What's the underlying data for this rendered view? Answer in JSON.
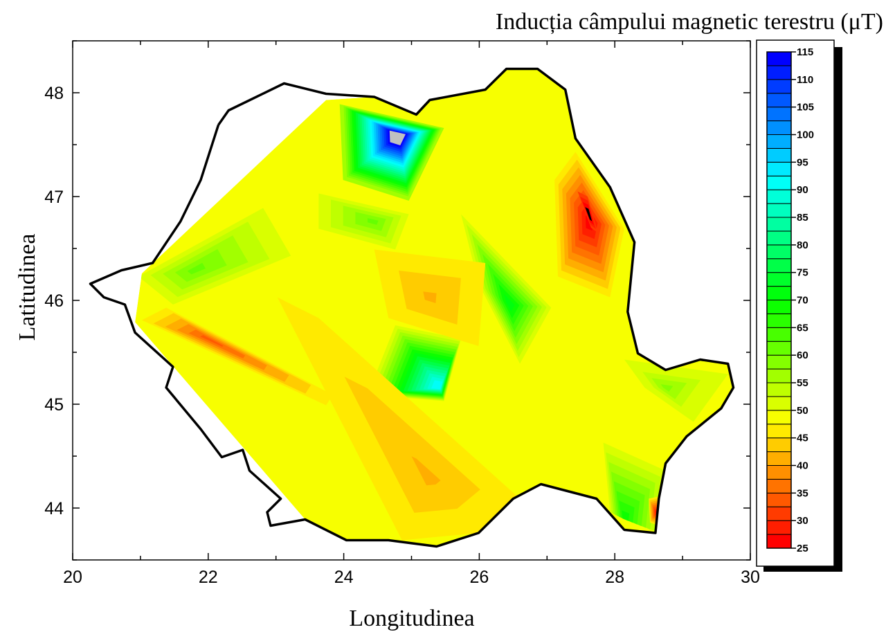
{
  "chart_data": {
    "type": "contour",
    "title": "Inducția câmpului magnetic terestru (μT)",
    "xlabel": "Longitudinea",
    "ylabel": "Latitudinea",
    "xlim": [
      20,
      30
    ],
    "ylim": [
      43.5,
      48.5
    ],
    "x_ticks": [
      "20",
      "22",
      "24",
      "26",
      "28",
      "30"
    ],
    "y_ticks": [
      "44",
      "45",
      "46",
      "47",
      "48"
    ],
    "grid": false,
    "colorbar": {
      "min": 25,
      "max": 115,
      "step": 2.5,
      "tick_labels": [
        "25",
        "30",
        "35",
        "40",
        "45",
        "50",
        "55",
        "60",
        "65",
        "70",
        "75",
        "80",
        "85",
        "90",
        "95",
        "100",
        "105",
        "110",
        "115"
      ],
      "placement": "right",
      "low_color": "#ff0000",
      "high_color": "#0000ff",
      "below_range_color": "#000000",
      "above_range_color": "#c0c0c0"
    },
    "base_value": 48,
    "border": [
      [
        22.15,
        47.69
      ],
      [
        22.3,
        47.83
      ],
      [
        23.12,
        48.09
      ],
      [
        23.74,
        47.99
      ],
      [
        24.45,
        47.96
      ],
      [
        25.07,
        47.79
      ],
      [
        25.27,
        47.93
      ],
      [
        26.09,
        48.03
      ],
      [
        26.4,
        48.23
      ],
      [
        26.86,
        48.23
      ],
      [
        27.27,
        48.03
      ],
      [
        27.42,
        47.56
      ],
      [
        27.93,
        47.09
      ],
      [
        28.29,
        46.56
      ],
      [
        28.19,
        45.89
      ],
      [
        28.34,
        45.49
      ],
      [
        28.75,
        45.33
      ],
      [
        29.26,
        45.43
      ],
      [
        29.67,
        45.39
      ],
      [
        29.75,
        45.16
      ],
      [
        29.57,
        44.96
      ],
      [
        29.06,
        44.69
      ],
      [
        28.75,
        44.43
      ],
      [
        28.65,
        44.09
      ],
      [
        28.6,
        43.76
      ],
      [
        28.14,
        43.79
      ],
      [
        27.73,
        44.09
      ],
      [
        26.91,
        44.23
      ],
      [
        26.5,
        44.09
      ],
      [
        25.99,
        43.76
      ],
      [
        25.37,
        43.63
      ],
      [
        24.66,
        43.69
      ],
      [
        24.04,
        43.69
      ],
      [
        23.43,
        43.89
      ],
      [
        22.92,
        43.83
      ],
      [
        22.87,
        43.96
      ],
      [
        23.07,
        44.09
      ],
      [
        22.61,
        44.36
      ],
      [
        22.51,
        44.56
      ],
      [
        22.2,
        44.49
      ],
      [
        21.89,
        44.76
      ],
      [
        21.38,
        45.16
      ],
      [
        21.48,
        45.36
      ],
      [
        20.92,
        45.69
      ],
      [
        20.77,
        45.96
      ],
      [
        20.46,
        46.03
      ],
      [
        20.26,
        46.16
      ],
      [
        20.72,
        46.29
      ],
      [
        21.18,
        46.36
      ],
      [
        21.59,
        46.76
      ],
      [
        21.89,
        47.16
      ]
    ],
    "interpolated_area": [
      [
        20.92,
        45.79
      ],
      [
        21.02,
        46.26
      ],
      [
        23.74,
        47.93
      ],
      [
        24.45,
        47.96
      ],
      [
        25.07,
        47.79
      ],
      [
        25.27,
        47.93
      ],
      [
        26.09,
        48.03
      ],
      [
        26.4,
        48.23
      ],
      [
        26.86,
        48.23
      ],
      [
        27.27,
        48.03
      ],
      [
        27.42,
        47.56
      ],
      [
        27.93,
        47.09
      ],
      [
        28.29,
        46.56
      ],
      [
        28.19,
        45.89
      ],
      [
        28.34,
        45.49
      ],
      [
        28.75,
        45.33
      ],
      [
        29.26,
        45.43
      ],
      [
        29.67,
        45.39
      ],
      [
        29.75,
        45.16
      ],
      [
        29.57,
        44.96
      ],
      [
        29.06,
        44.69
      ],
      [
        28.75,
        44.43
      ],
      [
        28.65,
        44.09
      ],
      [
        28.6,
        43.76
      ],
      [
        28.14,
        43.79
      ],
      [
        27.73,
        44.09
      ],
      [
        26.91,
        44.23
      ],
      [
        26.5,
        44.09
      ],
      [
        25.99,
        43.76
      ],
      [
        25.37,
        43.63
      ],
      [
        24.66,
        43.69
      ],
      [
        24.04,
        43.69
      ],
      [
        23.43,
        43.89
      ]
    ],
    "features": [
      {
        "outline": [
          [
            23.94,
            47.89
          ],
          [
            25.48,
            47.66
          ],
          [
            24.96,
            46.96
          ],
          [
            23.99,
            47.16
          ]
        ],
        "center": [
          24.81,
          47.59
        ],
        "edge": 55,
        "peak": 118
      },
      {
        "outline": [
          [
            25.73,
            46.83
          ],
          [
            27.06,
            45.93
          ],
          [
            26.6,
            45.39
          ],
          [
            25.99,
            46.16
          ]
        ],
        "center": [
          26.45,
          45.96
        ],
        "edge": 52,
        "peak": 72
      },
      {
        "outline": [
          [
            24.76,
            45.76
          ],
          [
            25.73,
            45.63
          ],
          [
            25.48,
            45.03
          ],
          [
            24.35,
            45.09
          ]
        ],
        "center": [
          25.42,
          45.16
        ],
        "edge": 52,
        "peak": 90
      },
      {
        "outline": [
          [
            20.97,
            46.23
          ],
          [
            22.81,
            46.89
          ],
          [
            23.22,
            46.43
          ],
          [
            21.48,
            45.96
          ]
        ],
        "center": [
          21.79,
          46.29
        ],
        "edge": 52,
        "peak": 62
      },
      {
        "outline": [
          [
            27.11,
            47.16
          ],
          [
            27.42,
            47.43
          ],
          [
            28.14,
            46.69
          ],
          [
            27.93,
            46.03
          ],
          [
            27.16,
            46.23
          ]
        ],
        "center": [
          27.63,
          46.76
        ],
        "edge": 45,
        "peak": 27
      },
      {
        "outline": [
          [
            27.45,
            47.05
          ],
          [
            27.6,
            47.0
          ],
          [
            27.75,
            46.65
          ],
          [
            27.65,
            46.7
          ]
        ],
        "center": [
          27.62,
          46.82
        ],
        "edge": 30,
        "peak": 20
      },
      {
        "outline": [
          [
            21.02,
            45.81
          ],
          [
            21.38,
            45.93
          ],
          [
            23.84,
            45.09
          ],
          [
            23.74,
            44.99
          ]
        ],
        "center": [
          22.0,
          45.63
        ],
        "edge": 45,
        "peak": 34
      },
      {
        "outline": [
          [
            23.02,
            46.03
          ],
          [
            23.63,
            45.83
          ],
          [
            26.6,
            44.09
          ],
          [
            25.99,
            43.76
          ],
          [
            24.86,
            43.69
          ]
        ],
        "center": [
          25.27,
          44.29
        ],
        "edge": 45,
        "peak": 40
      },
      {
        "outline": [
          [
            24.45,
            46.49
          ],
          [
            26.09,
            46.36
          ],
          [
            25.99,
            45.56
          ],
          [
            24.66,
            45.83
          ]
        ],
        "center": [
          25.27,
          46.03
        ],
        "edge": 47,
        "peak": 42
      },
      {
        "outline": [
          [
            27.83,
            44.63
          ],
          [
            28.75,
            44.36
          ],
          [
            28.65,
            43.76
          ],
          [
            27.93,
            43.96
          ]
        ],
        "center": [
          28.14,
          43.89
        ],
        "edge": 52,
        "peak": 68
      },
      {
        "outline": [
          [
            28.5,
            44.09
          ],
          [
            28.7,
            44.12
          ],
          [
            28.65,
            43.83
          ],
          [
            28.52,
            43.86
          ]
        ],
        "center": [
          28.61,
          43.96
        ],
        "edge": 45,
        "peak": 28
      },
      {
        "outline": [
          [
            28.14,
            45.43
          ],
          [
            29.67,
            45.29
          ],
          [
            29.16,
            44.83
          ],
          [
            28.44,
            45.16
          ]
        ],
        "center": [
          28.75,
          45.16
        ],
        "edge": 50,
        "peak": 58
      },
      {
        "outline": [
          [
            23.63,
            47.03
          ],
          [
            24.96,
            46.83
          ],
          [
            24.76,
            46.49
          ],
          [
            23.63,
            46.69
          ]
        ],
        "center": [
          24.45,
          46.76
        ],
        "edge": 52,
        "peak": 60
      }
    ]
  }
}
